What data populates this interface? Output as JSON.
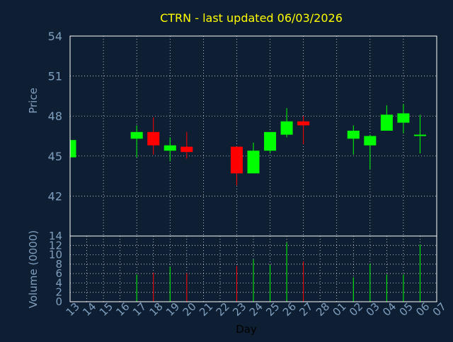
{
  "chart_data": {
    "type": "candlestick",
    "title": "CTRN - last updated 06/03/2026",
    "xlabel": "Day",
    "price_panel": {
      "ylabel": "Price",
      "ylim": [
        39,
        54
      ],
      "yticks": [
        42,
        45,
        48,
        51,
        54
      ]
    },
    "volume_panel": {
      "ylabel": "Volume (0000)",
      "ylim": [
        0,
        14
      ],
      "yticks": [
        0,
        2,
        4,
        6,
        8,
        10,
        12,
        14
      ]
    },
    "x_tick_labels": [
      "13",
      "14",
      "15",
      "16",
      "17",
      "18",
      "19",
      "20",
      "21",
      "22",
      "23",
      "24",
      "25",
      "26",
      "27",
      "28",
      "01",
      "02",
      "03",
      "04",
      "05",
      "06",
      "07"
    ],
    "grid": true,
    "colors": {
      "background": "#0f1f33",
      "up": "#00ff00",
      "down": "#ff0000",
      "title": "#ffff00",
      "axis_text": "#7f9fbf",
      "grid": "#ffffff",
      "frame": "#ffffff"
    },
    "candles": [
      {
        "day": "13",
        "open": 44.9,
        "high": 46.2,
        "low": 44.9,
        "close": 46.2,
        "volume": 0
      },
      {
        "day": "17",
        "open": 46.3,
        "high": 47.3,
        "low": 44.9,
        "close": 46.8,
        "volume": 5.8
      },
      {
        "day": "18",
        "open": 46.8,
        "high": 47.9,
        "low": 45.1,
        "close": 45.8,
        "volume": 6.2
      },
      {
        "day": "19",
        "open": 45.4,
        "high": 46.4,
        "low": 44.6,
        "close": 45.8,
        "volume": 7.5
      },
      {
        "day": "20",
        "open": 45.7,
        "high": 46.8,
        "low": 44.8,
        "close": 45.3,
        "volume": 6.1
      },
      {
        "day": "23",
        "open": 45.7,
        "high": 45.7,
        "low": 42.8,
        "close": 43.7,
        "volume": 7.6
      },
      {
        "day": "24",
        "open": 43.7,
        "high": 46.0,
        "low": 43.7,
        "close": 45.4,
        "volume": 9.0
      },
      {
        "day": "25",
        "open": 45.4,
        "high": 46.8,
        "low": 45.2,
        "close": 46.8,
        "volume": 7.8
      },
      {
        "day": "26",
        "open": 46.6,
        "high": 48.6,
        "low": 46.4,
        "close": 47.6,
        "volume": 12.6
      },
      {
        "day": "27",
        "open": 47.6,
        "high": 48.0,
        "low": 45.9,
        "close": 47.3,
        "volume": 8.6
      },
      {
        "day": "02",
        "open": 46.3,
        "high": 47.3,
        "low": 45.1,
        "close": 46.9,
        "volume": 5.2
      },
      {
        "day": "03",
        "open": 45.8,
        "high": 46.6,
        "low": 44.0,
        "close": 46.5,
        "volume": 8.1
      },
      {
        "day": "04",
        "open": 46.9,
        "high": 48.8,
        "low": 46.9,
        "close": 48.1,
        "volume": 5.8
      },
      {
        "day": "05",
        "open": 47.5,
        "high": 48.9,
        "low": 46.7,
        "close": 48.2,
        "volume": 5.8
      },
      {
        "day": "06",
        "open": 46.5,
        "high": 48.1,
        "low": 45.2,
        "close": 46.6,
        "volume": 12.2
      }
    ]
  }
}
